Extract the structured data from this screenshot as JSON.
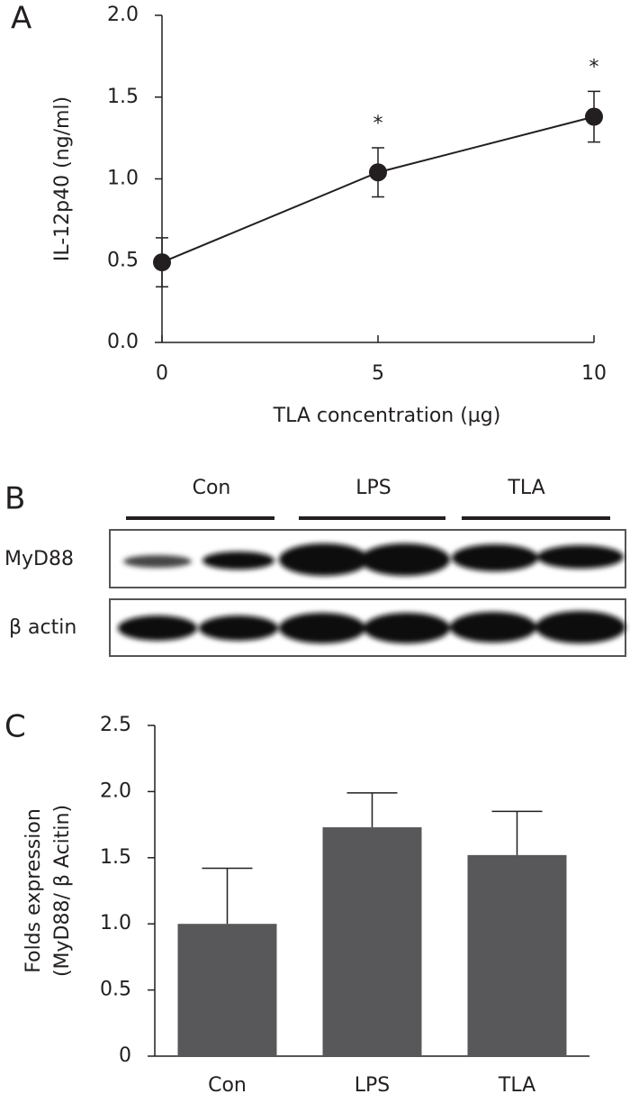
{
  "chart_data": [
    {
      "type": "line",
      "panel_label": "A",
      "x_label": "TLA concentration (µg)",
      "y_label": "IL-12p40 (ng/ml)",
      "x": [
        0,
        5,
        10
      ],
      "values": [
        0.49,
        1.04,
        1.38
      ],
      "errors": [
        0.15,
        0.15,
        0.155
      ],
      "color": "#231f20",
      "xlim": [
        0,
        10
      ],
      "xticks": [
        0,
        5,
        10
      ],
      "ylim": [
        0,
        2
      ],
      "yticks": [
        {
          "value": 0,
          "label": "0.0"
        },
        0.5,
        {
          "value": 1,
          "label": "1.0"
        },
        1.5,
        {
          "value": 2,
          "label": "2.0"
        }
      ],
      "annotations": [
        {
          "text": "*",
          "x": 5
        },
        {
          "text": "*",
          "x": 10
        }
      ]
    },
    {
      "type": "bar",
      "panel_label": "C",
      "y_label": [
        "Folds expression",
        "(MyD88/ β Acitin)"
      ],
      "categories": [
        "Con",
        "LPS",
        "TLA"
      ],
      "values": [
        1.0,
        1.73,
        1.52
      ],
      "errors": [
        0.42,
        0.26,
        0.33
      ],
      "color": "#58585a",
      "ylim": [
        0,
        2.5
      ],
      "yticks": [
        0,
        0.5,
        {
          "value": 1,
          "label": "1.0"
        },
        1.5,
        {
          "value": 2,
          "label": "2.0"
        },
        2.5
      ]
    }
  ],
  "blot": {
    "panel_label": "B",
    "lanes": [
      "Con",
      "LPS",
      "TLA"
    ],
    "rows": [
      "MyD88",
      "β actin"
    ]
  }
}
